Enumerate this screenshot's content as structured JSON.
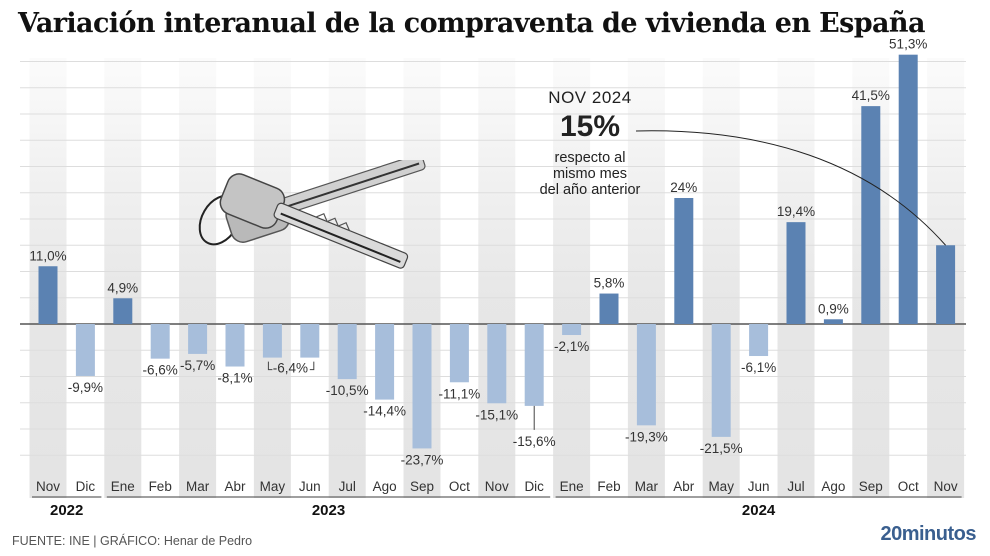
{
  "chart_data": {
    "type": "bar",
    "title": "Variación interanual de la compraventa de vivienda en España",
    "xlabel": "",
    "ylabel": "",
    "ylim": [
      -25,
      55
    ],
    "grid": true,
    "grid_step": 5,
    "categories": [
      "Nov",
      "Dic",
      "Ene",
      "Feb",
      "Mar",
      "Abr",
      "May",
      "Jun",
      "Jul",
      "Ago",
      "Sep",
      "Oct",
      "Nov",
      "Dic",
      "Ene",
      "Feb",
      "Mar",
      "Abr",
      "May",
      "Jun",
      "Jul",
      "Ago",
      "Sep",
      "Oct",
      "Nov"
    ],
    "values": [
      11.0,
      -9.9,
      4.9,
      -6.6,
      -5.7,
      -8.1,
      -6.4,
      -6.4,
      -10.5,
      -14.4,
      -23.7,
      -11.1,
      -15.1,
      -15.6,
      -2.1,
      5.8,
      -19.3,
      24.0,
      -21.5,
      -6.1,
      19.4,
      0.9,
      41.5,
      51.3,
      15.0
    ],
    "data_labels": [
      "11,0%",
      "-9,9%",
      "4,9%",
      "-6,6%",
      "-5,7%",
      "-8,1%",
      "-6,4%",
      "",
      "-10,5%",
      "-14,4%",
      "-23,7%",
      "-11,1%",
      "-15,1%",
      "-15,6%",
      "-2,1%",
      "5,8%",
      "-19,3%",
      "24%",
      "-21,5%",
      "-6,1%",
      "19,4%",
      "0,9%",
      "41,5%",
      "51,3%",
      ""
    ],
    "years": [
      {
        "label": "2022",
        "from": 0,
        "to": 1
      },
      {
        "label": "2023",
        "from": 2,
        "to": 13
      },
      {
        "label": "2024",
        "from": 14,
        "to": 24
      }
    ],
    "colors": {
      "positive": "#5b82b2",
      "negative": "#a7bedb",
      "stripe": "#e4e4e4",
      "grid": "#dddddd",
      "zero_line": "#555555"
    },
    "annotation": {
      "period": "NOV  2024",
      "value": "15%",
      "description": [
        "respecto al",
        "mismo mes",
        "del año anterior"
      ],
      "target_index": 24
    }
  },
  "footer": {
    "source": "FUENTE: INE  |  GRÁFICO: Henar de Pedro",
    "brand": "20minutos"
  },
  "illustration": {
    "icon": "keys-icon"
  }
}
